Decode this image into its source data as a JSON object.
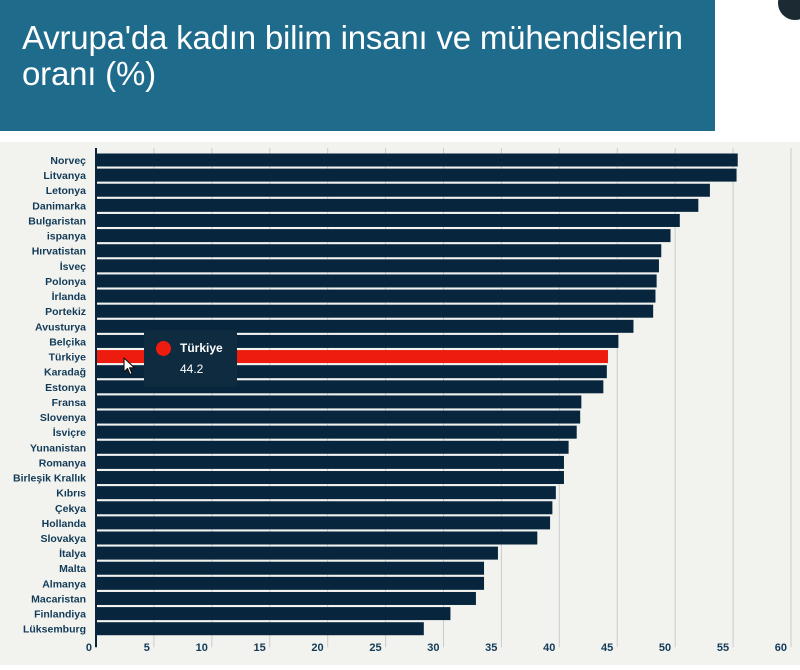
{
  "header": {
    "title": "Avrupa'da kadın bilim insanı ve mühendislerin oranı (%)"
  },
  "tooltip": {
    "name": "Türkiye",
    "value": "44.2"
  },
  "colors": {
    "header_bg": "#1e6b8c",
    "bar": "#07263d",
    "highlight_bar": "#ee1c0e",
    "panel_bg": "#f2f2ef",
    "label": "#123b57"
  },
  "chart_data": {
    "type": "bar",
    "orientation": "horizontal",
    "title": "Avrupa'da kadın bilim insanı ve mühendislerin oranı (%)",
    "categories": [
      "Norveç",
      "Litvanya",
      "Letonya",
      "Danimarka",
      "Bulgaristan",
      "ispanya",
      "Hırvatistan",
      "İsveç",
      "Polonya",
      "İrlanda",
      "Portekiz",
      "Avusturya",
      "Belçika",
      "Türkiye",
      "Karadağ",
      "Estonya",
      "Fransa",
      "Slovenya",
      "İsviçre",
      "Yunanistan",
      "Romanya",
      "Birleşik Krallık",
      "Kıbrıs",
      "Çekya",
      "Hollanda",
      "Slovakya",
      "İtalya",
      "Malta",
      "Almanya",
      "Macaristan",
      "Finlandiya",
      "Lüksemburg"
    ],
    "values": [
      55.4,
      55.3,
      53.0,
      52.0,
      50.4,
      49.6,
      48.8,
      48.6,
      48.4,
      48.3,
      48.1,
      46.4,
      45.1,
      44.2,
      44.1,
      43.8,
      41.9,
      41.8,
      41.5,
      40.8,
      40.4,
      40.4,
      39.7,
      39.4,
      39.2,
      38.1,
      34.7,
      33.5,
      33.5,
      32.8,
      30.6,
      28.3
    ],
    "highlight": "Türkiye",
    "xlim": [
      0,
      60
    ],
    "xticks": [
      0,
      5,
      10,
      15,
      20,
      25,
      30,
      35,
      40,
      45,
      50,
      55,
      60
    ],
    "grid": true
  }
}
